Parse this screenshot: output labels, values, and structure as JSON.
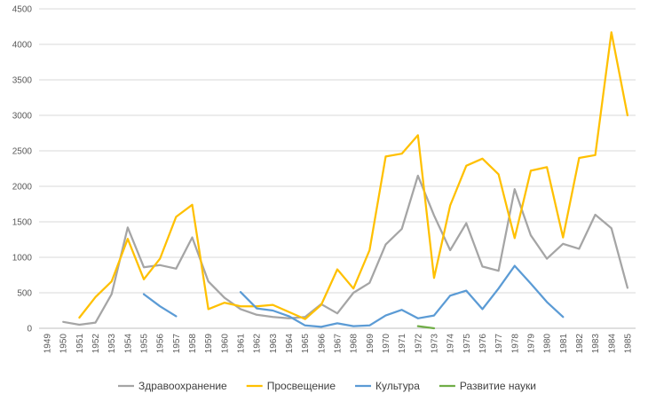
{
  "chart_data": {
    "type": "line",
    "x": [
      "1949",
      "1950",
      "1951",
      "1952",
      "1953",
      "1954",
      "1955",
      "1956",
      "1957",
      "1958",
      "1959",
      "1960",
      "1961",
      "1962",
      "1963",
      "1964",
      "1965",
      "1966",
      "1967",
      "1968",
      "1969",
      "1970",
      "1971",
      "1972",
      "1973",
      "1974",
      "1975",
      "1976",
      "1977",
      "1978",
      "1979",
      "1980",
      "1981",
      "1982",
      "1983",
      "1984",
      "1985"
    ],
    "ylim": [
      0,
      4500
    ],
    "yticks": [
      0,
      500,
      1000,
      1500,
      2000,
      2500,
      3000,
      3500,
      4000,
      4500
    ],
    "grid": true,
    "legend_position": "bottom",
    "series": [
      {
        "name": "Здравоохранение",
        "color": "#A5A5A5",
        "values": [
          null,
          90,
          50,
          80,
          480,
          1420,
          860,
          890,
          840,
          1280,
          660,
          430,
          270,
          190,
          160,
          140,
          160,
          340,
          210,
          500,
          640,
          1180,
          1400,
          2150,
          1590,
          1100,
          1480,
          870,
          810,
          1960,
          1310,
          980,
          1190,
          1120,
          1600,
          1410,
          570
        ]
      },
      {
        "name": "Просвещение",
        "color": "#FFC000",
        "values": [
          null,
          null,
          150,
          440,
          660,
          1260,
          690,
          980,
          1570,
          1740,
          270,
          360,
          310,
          310,
          330,
          230,
          130,
          330,
          830,
          560,
          1100,
          2420,
          2460,
          2720,
          710,
          1730,
          2290,
          2390,
          2170,
          1270,
          2220,
          2270,
          1280,
          2400,
          2440,
          4170,
          3000
        ]
      },
      {
        "name": "Культура",
        "color": "#5B9BD5",
        "values": [
          null,
          null,
          null,
          null,
          null,
          null,
          480,
          310,
          170,
          null,
          null,
          null,
          510,
          280,
          250,
          170,
          40,
          20,
          70,
          30,
          40,
          180,
          260,
          140,
          180,
          460,
          530,
          270,
          560,
          880,
          630,
          370,
          160,
          null,
          null,
          null,
          null
        ]
      },
      {
        "name": "Развитие науки",
        "color": "#70AD47",
        "values": [
          null,
          null,
          null,
          null,
          null,
          null,
          null,
          null,
          null,
          null,
          null,
          null,
          null,
          null,
          null,
          null,
          null,
          null,
          null,
          null,
          null,
          null,
          null,
          30,
          0,
          null,
          null,
          null,
          null,
          null,
          null,
          null,
          null,
          null,
          null,
          null,
          null
        ]
      }
    ]
  }
}
